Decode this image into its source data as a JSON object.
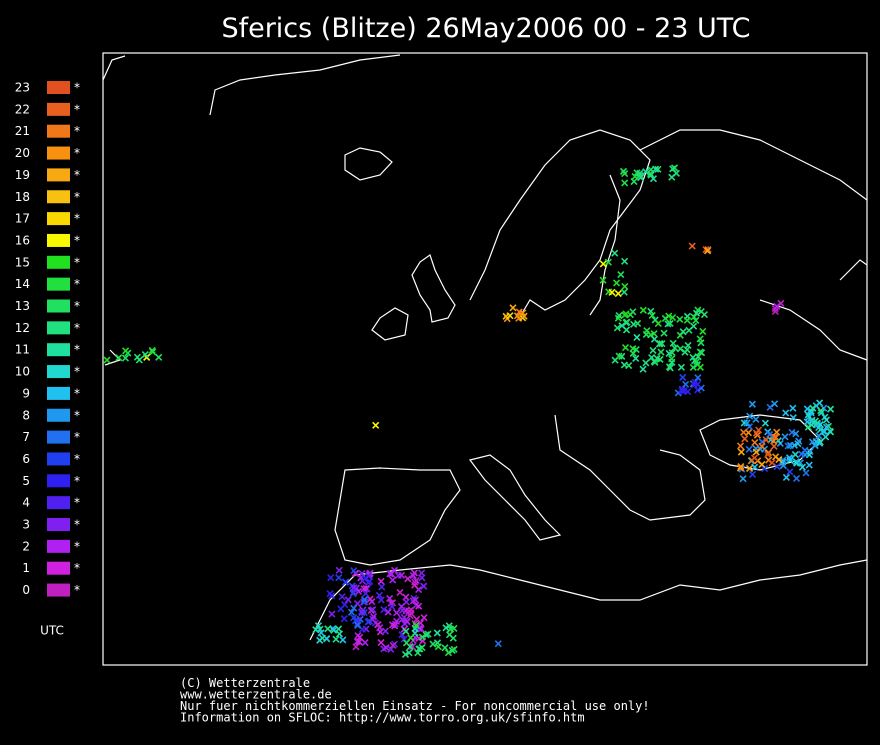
{
  "title": "Sferics (Blitze) 26May2006 00 - 23 UTC",
  "legend": {
    "marker": "*",
    "unit": "UTC",
    "entries": [
      {
        "label": "23",
        "color": "#e05020"
      },
      {
        "label": "22",
        "color": "#e86020"
      },
      {
        "label": "21",
        "color": "#f07818"
      },
      {
        "label": "20",
        "color": "#f89010"
      },
      {
        "label": "19",
        "color": "#f8a810"
      },
      {
        "label": "18",
        "color": "#f8c010"
      },
      {
        "label": "17",
        "color": "#f8d800"
      },
      {
        "label": "16",
        "color": "#f8f800"
      },
      {
        "label": "15",
        "color": "#20e020"
      },
      {
        "label": "14",
        "color": "#20e040"
      },
      {
        "label": "13",
        "color": "#20e060"
      },
      {
        "label": "12",
        "color": "#20e080"
      },
      {
        "label": "11",
        "color": "#20e0a0"
      },
      {
        "label": "10",
        "color": "#20d8d0"
      },
      {
        "label": "9",
        "color": "#20c0f0"
      },
      {
        "label": "8",
        "color": "#2098f0"
      },
      {
        "label": "7",
        "color": "#2070f0"
      },
      {
        "label": "6",
        "color": "#2040f0"
      },
      {
        "label": "5",
        "color": "#3020f0"
      },
      {
        "label": "4",
        "color": "#5020f0"
      },
      {
        "label": "3",
        "color": "#8020f0"
      },
      {
        "label": "2",
        "color": "#b020f0"
      },
      {
        "label": "1",
        "color": "#d020e0"
      },
      {
        "label": "0",
        "color": "#c020c0"
      }
    ]
  },
  "footer": [
    "(C) Wetterzentrale",
    "www.wetterzentrale.de",
    "Nur fuer nichtkommerziellen Einsatz - For noncommercial use only!",
    "Information on SFLOC: http://www.torro.org.uk/sfinfo.htm"
  ]
}
